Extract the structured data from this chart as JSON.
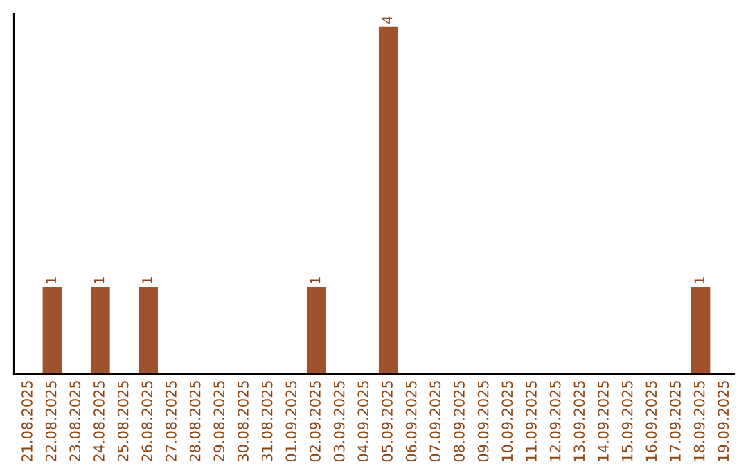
{
  "chart_data": {
    "type": "bar",
    "categories": [
      "21.08.2025",
      "22.08.2025",
      "23.08.2025",
      "24.08.2025",
      "25.08.2025",
      "26.08.2025",
      "27.08.2025",
      "28.08.2025",
      "29.08.2025",
      "30.08.2025",
      "31.08.2025",
      "01.09.2025",
      "02.09.2025",
      "03.09.2025",
      "04.09.2025",
      "05.09.2025",
      "06.09.2025",
      "07.09.2025",
      "08.09.2025",
      "09.09.2025",
      "10.09.2025",
      "11.09.2025",
      "12.09.2025",
      "13.09.2025",
      "14.09.2025",
      "15.09.2025",
      "16.09.2025",
      "17.09.2025",
      "18.09.2025",
      "19.09.2025"
    ],
    "values": [
      0,
      1,
      0,
      1,
      0,
      1,
      0,
      0,
      0,
      0,
      0,
      0,
      1,
      0,
      0,
      4,
      0,
      0,
      0,
      0,
      0,
      0,
      0,
      0,
      0,
      0,
      0,
      0,
      1,
      0
    ],
    "color": "#a0522d",
    "ylim": [
      0,
      4.15
    ],
    "tick_labels": "x",
    "value_labels": [
      null,
      "1",
      null,
      "1",
      null,
      "1",
      null,
      null,
      null,
      null,
      null,
      null,
      "1",
      null,
      null,
      "4",
      null,
      null,
      null,
      null,
      null,
      null,
      null,
      null,
      null,
      null,
      null,
      null,
      "1",
      null
    ],
    "grid": false,
    "legend": false
  }
}
